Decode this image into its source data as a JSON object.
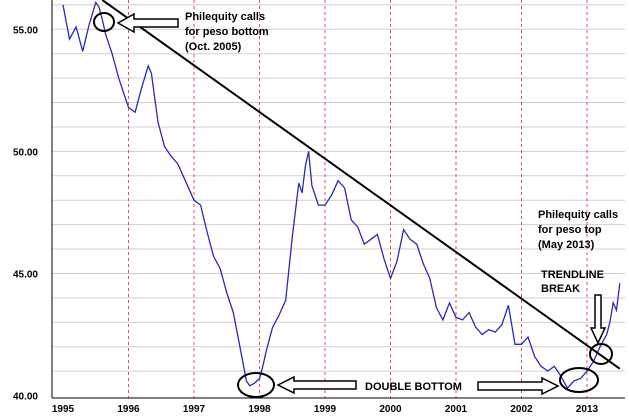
{
  "chart_data": {
    "type": "line",
    "xlabel": "",
    "ylabel": "",
    "x_tick_labels": [
      "1995",
      "1996",
      "1997",
      "1998",
      "1999",
      "2000",
      "2001",
      "2002",
      "2013"
    ],
    "y_ticks": [
      "55.00",
      "50.00",
      "45.00",
      "40.00"
    ],
    "ylim": [
      39.9,
      56.2
    ],
    "grid": {
      "vertical": "dotted-red",
      "horizontal": "light-gray"
    },
    "series": [
      {
        "color": "#2a2ab5",
        "x": [
          0.0,
          0.1,
          0.2,
          0.3,
          0.4,
          0.5,
          0.55,
          0.6,
          0.65,
          0.75,
          0.85,
          0.95,
          1.0,
          1.1,
          1.2,
          1.3,
          1.35,
          1.45,
          1.55,
          1.65,
          1.75,
          1.85,
          2.0,
          2.1,
          2.2,
          2.3,
          2.4,
          2.5,
          2.6,
          2.7,
          2.8,
          2.85,
          2.92,
          3.0,
          3.05,
          3.1,
          3.15,
          3.2,
          3.3,
          3.4,
          3.5,
          3.6,
          3.65,
          3.7,
          3.75,
          3.8,
          3.9,
          4.0,
          4.1,
          4.2,
          4.3,
          4.4,
          4.5,
          4.6,
          4.7,
          4.8,
          4.9,
          5.0,
          5.1,
          5.2,
          5.3,
          5.4,
          5.5,
          5.6,
          5.7,
          5.8,
          5.9,
          6.0,
          6.1,
          6.2,
          6.3,
          6.4,
          6.5,
          6.6,
          6.7,
          6.8,
          6.9,
          7.0,
          7.1,
          7.2,
          7.3,
          7.4,
          7.5,
          7.6,
          7.7,
          7.8,
          7.9,
          8.0,
          8.1,
          8.2,
          8.3,
          8.35,
          8.4,
          8.45,
          8.5
        ],
        "y": [
          56.0,
          54.6,
          55.1,
          54.1,
          55.2,
          56.1,
          55.9,
          55.4,
          54.8,
          54.0,
          53.0,
          52.2,
          51.8,
          51.6,
          52.6,
          53.5,
          53.2,
          51.2,
          50.2,
          49.8,
          49.5,
          48.9,
          48.0,
          47.8,
          46.7,
          45.7,
          45.2,
          44.2,
          43.4,
          42.0,
          40.6,
          40.4,
          40.5,
          40.7,
          41.2,
          41.8,
          42.3,
          42.8,
          43.3,
          43.9,
          46.5,
          48.7,
          48.3,
          49.4,
          50.0,
          48.6,
          47.8,
          47.8,
          48.2,
          48.8,
          48.5,
          47.2,
          46.9,
          46.2,
          46.4,
          46.6,
          45.6,
          44.8,
          45.5,
          46.8,
          46.4,
          46.2,
          45.4,
          44.8,
          43.6,
          43.1,
          43.8,
          43.2,
          43.1,
          43.4,
          42.8,
          42.5,
          42.7,
          42.6,
          42.9,
          43.7,
          42.1,
          42.1,
          42.4,
          41.6,
          41.2,
          41.0,
          41.2,
          40.8,
          40.3,
          40.6,
          40.7,
          41.0,
          41.4,
          42.0,
          42.5,
          43.0,
          43.8,
          43.5,
          44.6
        ]
      }
    ],
    "trendline": {
      "from": [
        0.6,
        56.2
      ],
      "to": [
        8.5,
        41.1
      ]
    },
    "annotations": {
      "top_note": [
        "Philequity calls",
        "for peso bottom",
        "(Oct. 2005)"
      ],
      "right_note": [
        "Philequity calls",
        "for peso top",
        "(May 2013)"
      ],
      "break_note": [
        "TRENDLINE",
        "BREAK"
      ],
      "double_bottom": "DOUBLE BOTTOM"
    }
  }
}
